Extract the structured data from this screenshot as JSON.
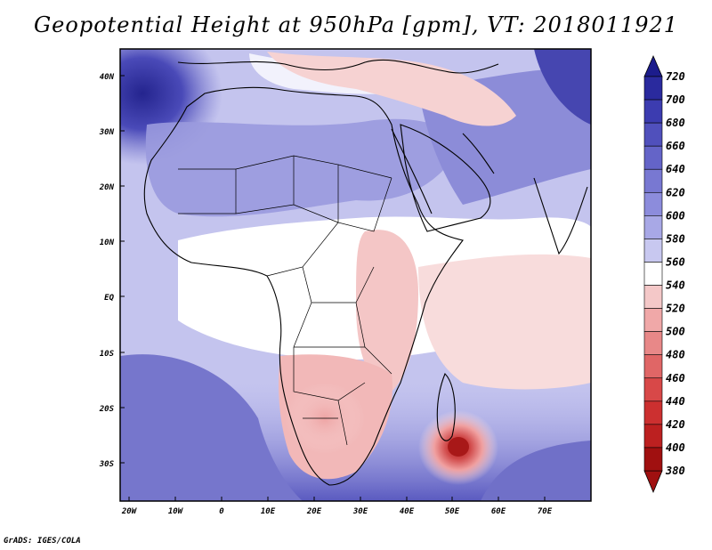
{
  "title": "Geopotential Height at 950hPa [gpm], VT: 2018011921",
  "footer": "GrADS: IGES/COLA",
  "map": {
    "region": "Africa, Middle East and western Indian Ocean",
    "variable": "Geopotential Height at 950hPa",
    "units": "gpm",
    "valid_time": "2018011921",
    "lon_range": [
      -22,
      80
    ],
    "lat_range": [
      -37,
      46
    ],
    "lat_ticks": [
      "40N",
      "30N",
      "20N",
      "10N",
      "EQ",
      "10S",
      "20S",
      "30S"
    ],
    "lon_ticks": [
      "20W",
      "10W",
      "0",
      "10E",
      "20E",
      "30E",
      "40E",
      "50E",
      "60E",
      "70E"
    ],
    "features": [
      {
        "name": "Mozambique Channel / SE of Madagascar low",
        "center_lon": 51,
        "center_lat": -27,
        "value_gpm": 390
      },
      {
        "name": "Southern Africa thermal low",
        "center_lon": 20,
        "center_lat": -22,
        "value_gpm": 500
      },
      {
        "name": "Atlantic high west of Iberia",
        "center_lon": -20,
        "center_lat": 38,
        "value_gpm": 700
      }
    ]
  },
  "colorbar": {
    "labels": [
      "720",
      "700",
      "680",
      "660",
      "640",
      "620",
      "600",
      "580",
      "560",
      "540",
      "520",
      "500",
      "480",
      "460",
      "440",
      "420",
      "400",
      "380"
    ],
    "colors": [
      "#1c1c8c",
      "#2a2a9e",
      "#3c3cb0",
      "#5050bc",
      "#6464c8",
      "#7878d2",
      "#8c8cdc",
      "#a8a8e6",
      "#c8c8f0",
      "#ffffff",
      "#f4c8c8",
      "#f0a8a8",
      "#e88888",
      "#e06666",
      "#d84848",
      "#cc3030",
      "#bc2020",
      "#a01010"
    ]
  }
}
